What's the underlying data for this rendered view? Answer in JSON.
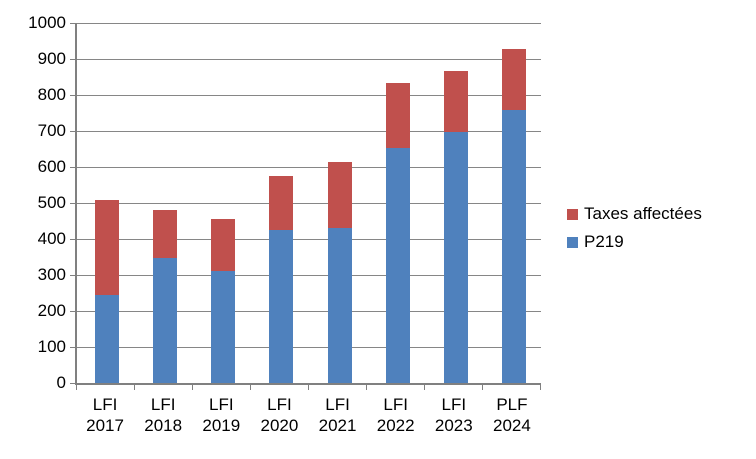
{
  "chart_data": {
    "type": "bar",
    "stacked": true,
    "title": "",
    "xlabel": "",
    "ylabel": "",
    "categories": [
      {
        "line1": "LFI",
        "line2": "2017"
      },
      {
        "line1": "LFI",
        "line2": "2018"
      },
      {
        "line1": "LFI",
        "line2": "2019"
      },
      {
        "line1": "LFI",
        "line2": "2020"
      },
      {
        "line1": "LFI",
        "line2": "2021"
      },
      {
        "line1": "LFI",
        "line2": "2022"
      },
      {
        "line1": "LFI",
        "line2": "2023"
      },
      {
        "line1": "PLF",
        "line2": "2024"
      }
    ],
    "series": [
      {
        "name": "P219",
        "color": "#4F81BD",
        "values": [
          245,
          347,
          312,
          426,
          430,
          654,
          697,
          758
        ]
      },
      {
        "name": "Taxes affectées",
        "color": "#C0504D",
        "values": [
          264,
          133,
          145,
          148,
          184,
          180,
          171,
          169
        ]
      }
    ],
    "totals": [
      509,
      480,
      457,
      574,
      614,
      834,
      868,
      927
    ],
    "y_axis": {
      "min": 0,
      "max": 1000,
      "step": 100,
      "tick_labels": [
        "0",
        "100",
        "200",
        "300",
        "400",
        "500",
        "600",
        "700",
        "800",
        "900",
        "1000"
      ]
    },
    "legend": {
      "position": "right",
      "items": [
        {
          "label": "Taxes affectées",
          "color": "#C0504D"
        },
        {
          "label": "P219",
          "color": "#4F81BD"
        }
      ]
    },
    "grid": true,
    "colors": {
      "gridline": "#868686",
      "axis": "#808080",
      "text": "#000000",
      "background": "#FFFFFF"
    }
  }
}
